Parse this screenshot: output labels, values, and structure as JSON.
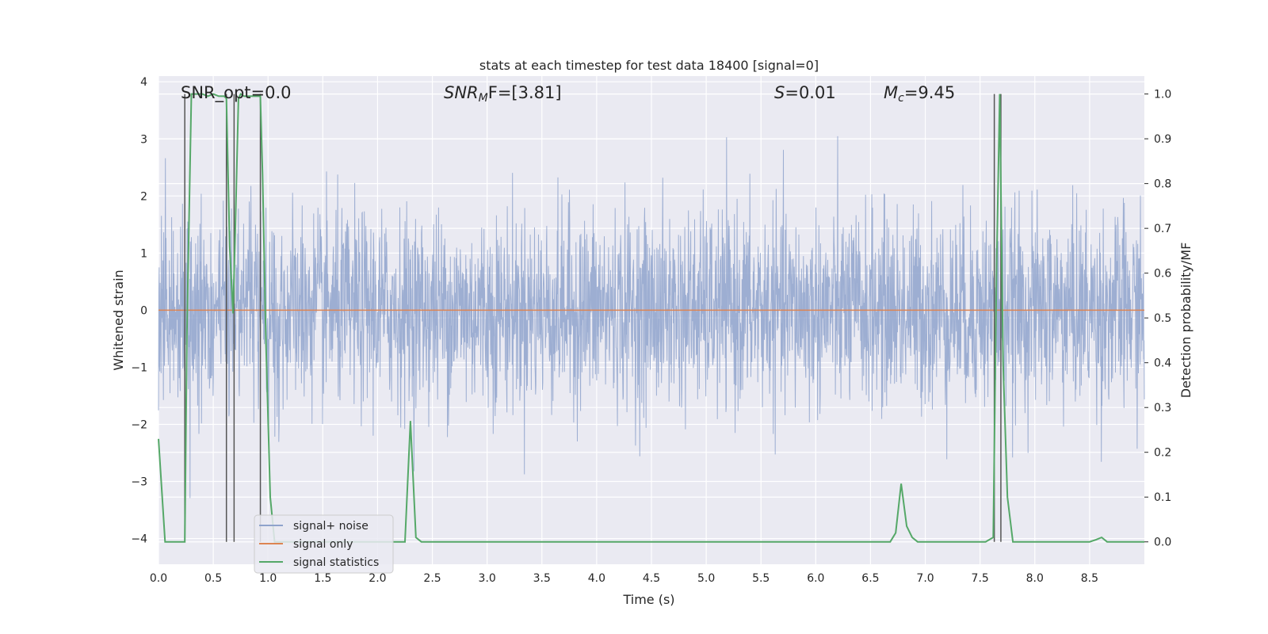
{
  "chart_data": {
    "type": "line",
    "title": "stats at each timestep for test data 18400 [signal=0]",
    "xlabel": "Time (s)",
    "ylabel": "Whitened strain",
    "y2label": "Detection probability/MF",
    "xlim": [
      0,
      9.0
    ],
    "ylim": [
      -4.45,
      4.1
    ],
    "y2lim": [
      -0.05,
      1.04
    ],
    "x_ticks": [
      "0.0",
      "0.5",
      "1.0",
      "1.5",
      "2.0",
      "2.5",
      "3.0",
      "3.5",
      "4.0",
      "4.5",
      "5.0",
      "5.5",
      "6.0",
      "6.5",
      "7.0",
      "7.5",
      "8.0",
      "8.5"
    ],
    "y_ticks": [
      "4",
      "3",
      "2",
      "1",
      "0",
      "−1",
      "−2",
      "−3",
      "−4"
    ],
    "y2_ticks": [
      "1.0",
      "0.9",
      "0.8",
      "0.7",
      "0.6",
      "0.5",
      "0.4",
      "0.3",
      "0.2",
      "0.1",
      "0.0"
    ],
    "grid": true,
    "legend_position": "lower-left",
    "annotations": {
      "snr_opt": "SNR_opt=0.0",
      "snr_mf_main": "SNR",
      "snr_mf_sub": "M",
      "snr_mf_tail": "F=[3.81]",
      "s_main": "S",
      "s_tail": "=0.01",
      "mc_main": "M",
      "mc_sub": "c",
      "mc_tail": "=9.45"
    },
    "series": [
      {
        "name": "signal+ noise",
        "color": "#8fa3cc",
        "description_values": "noise_band",
        "noise_std": 0.85,
        "noise_peak": 3.6
      },
      {
        "name": "signal only",
        "color": "#dd8452",
        "values_constant": 0.0
      },
      {
        "name": "signal statistics",
        "color": "#55a868",
        "axis": "right",
        "x": [
          0.0,
          0.06,
          0.1,
          0.15,
          0.2,
          0.24,
          0.26,
          0.3,
          0.35,
          0.4,
          0.45,
          0.5,
          0.55,
          0.6,
          0.62,
          0.65,
          0.68,
          0.7,
          0.73,
          0.75,
          0.78,
          0.82,
          0.88,
          0.93,
          0.95,
          0.98,
          1.02,
          1.06,
          1.1,
          1.2,
          1.4,
          1.6,
          1.8,
          2.0,
          2.2,
          2.25,
          2.3,
          2.35,
          2.4,
          2.45,
          2.5,
          3.0,
          4.0,
          5.0,
          6.0,
          6.5,
          6.68,
          6.73,
          6.78,
          6.83,
          6.88,
          6.93,
          6.98,
          7.05,
          7.2,
          7.4,
          7.55,
          7.62,
          7.65,
          7.68,
          7.71,
          7.75,
          7.8,
          8.0,
          8.3,
          8.5,
          8.56,
          8.61,
          8.66,
          8.75,
          9.0
        ],
        "values": [
          0.23,
          0.0,
          0.0,
          0.0,
          0.0,
          0.0,
          0.47,
          1.0,
          1.0,
          1.0,
          0.995,
          1.0,
          0.995,
          0.995,
          0.99,
          0.66,
          0.51,
          0.69,
          0.99,
          1.0,
          0.995,
          0.995,
          0.995,
          0.995,
          0.82,
          0.45,
          0.1,
          0.0,
          0.0,
          0.0,
          0.0,
          0.0,
          0.0,
          0.0,
          0.0,
          0.0,
          0.27,
          0.01,
          0.0,
          0.0,
          0.0,
          0.0,
          0.0,
          0.0,
          0.0,
          0.0,
          0.0,
          0.02,
          0.13,
          0.035,
          0.01,
          0.0,
          0.0,
          0.0,
          0.0,
          0.0,
          0.0,
          0.01,
          0.6,
          1.0,
          0.4,
          0.1,
          0.0,
          0.0,
          0.0,
          0.0,
          0.005,
          0.01,
          0.0,
          0.0,
          0.0
        ]
      }
    ],
    "vertical_markers": [
      {
        "name": "marker",
        "color": "#555555",
        "x": [
          0.24,
          0.62,
          0.69,
          0.93,
          7.63,
          7.69
        ]
      }
    ]
  }
}
